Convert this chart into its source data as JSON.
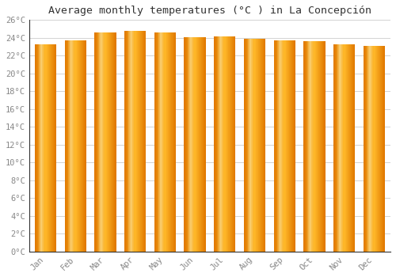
{
  "title": "Average monthly temperatures (°C ) in La Concepción",
  "months": [
    "Jan",
    "Feb",
    "Mar",
    "Apr",
    "May",
    "Jun",
    "Jul",
    "Aug",
    "Sep",
    "Oct",
    "Nov",
    "Dec"
  ],
  "values": [
    23.3,
    23.7,
    24.6,
    24.8,
    24.6,
    24.1,
    24.2,
    23.9,
    23.7,
    23.6,
    23.3,
    23.1
  ],
  "ylim": [
    0,
    26
  ],
  "yticks": [
    0,
    2,
    4,
    6,
    8,
    10,
    12,
    14,
    16,
    18,
    20,
    22,
    24,
    26
  ],
  "bar_color_center": "#FFB929",
  "bar_color_edge": "#E07800",
  "bar_color_highlight": "#FFD966",
  "background_color": "#ffffff",
  "grid_color": "#cccccc",
  "title_fontsize": 9.5,
  "tick_fontsize": 7.5,
  "font_family": "monospace",
  "tick_color": "#888888",
  "spine_color": "#333333",
  "figsize": [
    5.0,
    3.5
  ],
  "dpi": 100
}
